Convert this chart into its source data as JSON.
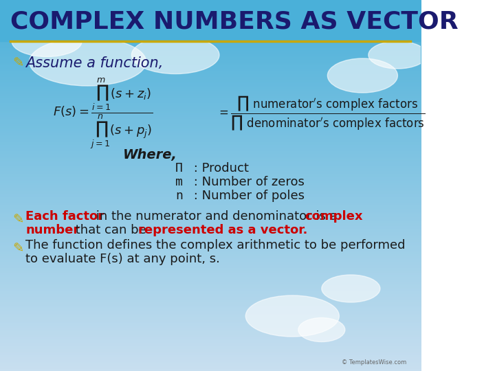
{
  "title": "COMPLEX NUMBERS AS VECTOR",
  "title_color": "#1a1a6e",
  "title_underline_color": "#c8a800",
  "bg_top_color": "#4ab0d9",
  "bg_bottom_color": "#c8dff0",
  "bullet_color": "#c8a800",
  "bullet_symbol": "☣",
  "assume_text": "Assume a function,",
  "assume_color": "#1a1a6e",
  "formula_color": "#1a1a1a",
  "where_text": "Where,",
  "where_color": "#1a1a1a",
  "definitions": [
    [
      "Π",
      " : Product"
    ],
    [
      "m",
      " : Number of zeros"
    ],
    [
      "n",
      " : Number of poles"
    ]
  ],
  "def_color": "#1a1a1a",
  "bullet1_line1_red": "Each factor",
  "bullet1_line1_black": " in the numerator and denominator is a ",
  "bullet1_line1_red2": "complex",
  "bullet1_line2_red": "number",
  "bullet1_line2_black": " that can be ",
  "bullet1_line2_red2": "represented as a vector.",
  "bullet2_line1": "The function defines the complex arithmetic to be performed",
  "bullet2_line2": "to evaluate F(s) at any point, s.",
  "bullet_text_color": "#1a1a1a",
  "red_color": "#cc0000",
  "font_size_title": 26,
  "font_size_body": 15
}
